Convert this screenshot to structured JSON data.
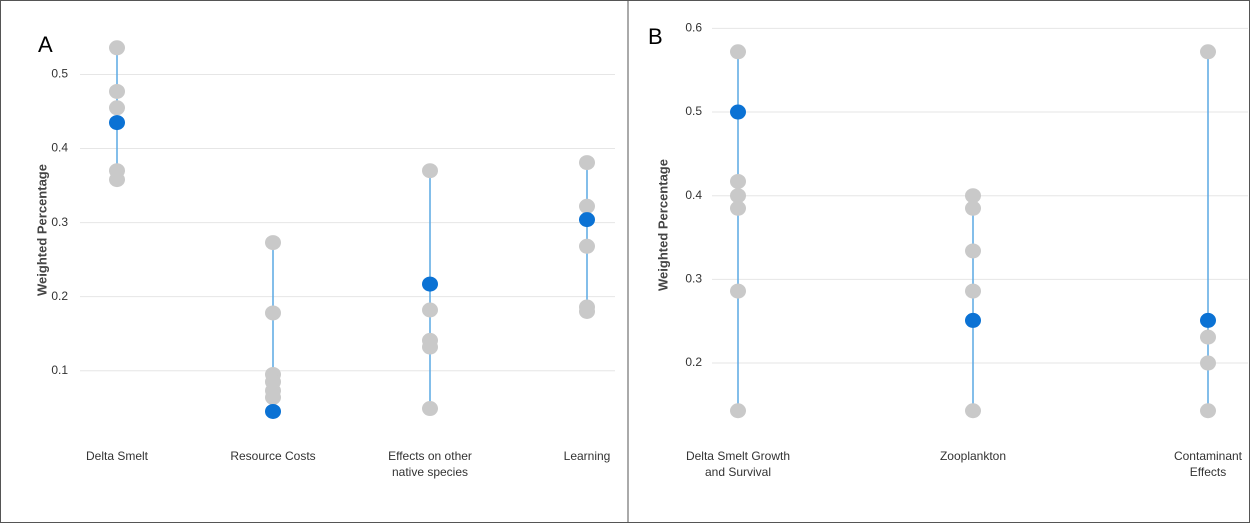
{
  "chart_data": [
    {
      "type": "dotrange",
      "panel_label": "A",
      "y_label": "Weighted Percentage",
      "categories": [
        "Delta Smelt",
        "Resource Costs",
        "Effects on other native species",
        "Learning"
      ],
      "values": [
        [
          0.536,
          0.477,
          0.455,
          0.37,
          0.358
        ],
        [
          0.273,
          0.178,
          0.095,
          0.085,
          0.073,
          0.064
        ],
        [
          0.37,
          0.182,
          0.141,
          0.132,
          0.049
        ],
        [
          0.381,
          0.322,
          0.268,
          0.186,
          0.18
        ]
      ],
      "highlight": [
        0.435,
        0.045,
        0.217,
        0.304
      ],
      "color": "#c9c9c9",
      "highlight_color": "#0b72d4",
      "line_color": "#5aa8e4",
      "ylim": [
        0.02,
        0.56
      ],
      "yticks": [
        0.1,
        0.2,
        0.3,
        0.4,
        0.5
      ],
      "grid": true
    },
    {
      "type": "dotrange",
      "panel_label": "B",
      "y_label": "Weighted Percentage",
      "categories": [
        "Delta Smelt Growth and Survival",
        "Zooplankton",
        "Contaminant Effects"
      ],
      "values": [
        [
          0.572,
          0.417,
          0.4,
          0.385,
          0.286,
          0.143
        ],
        [
          0.4,
          0.385,
          0.334,
          0.286,
          0.143
        ],
        [
          0.572,
          0.231,
          0.2,
          0.143
        ]
      ],
      "highlight": [
        0.5,
        0.251,
        0.251
      ],
      "color": "#c9c9c9",
      "highlight_color": "#0b72d4",
      "line_color": "#5aa8e4",
      "ylim": [
        0.12,
        0.61
      ],
      "yticks": [
        0.2,
        0.3,
        0.4,
        0.5,
        0.6
      ],
      "grid": true
    }
  ]
}
